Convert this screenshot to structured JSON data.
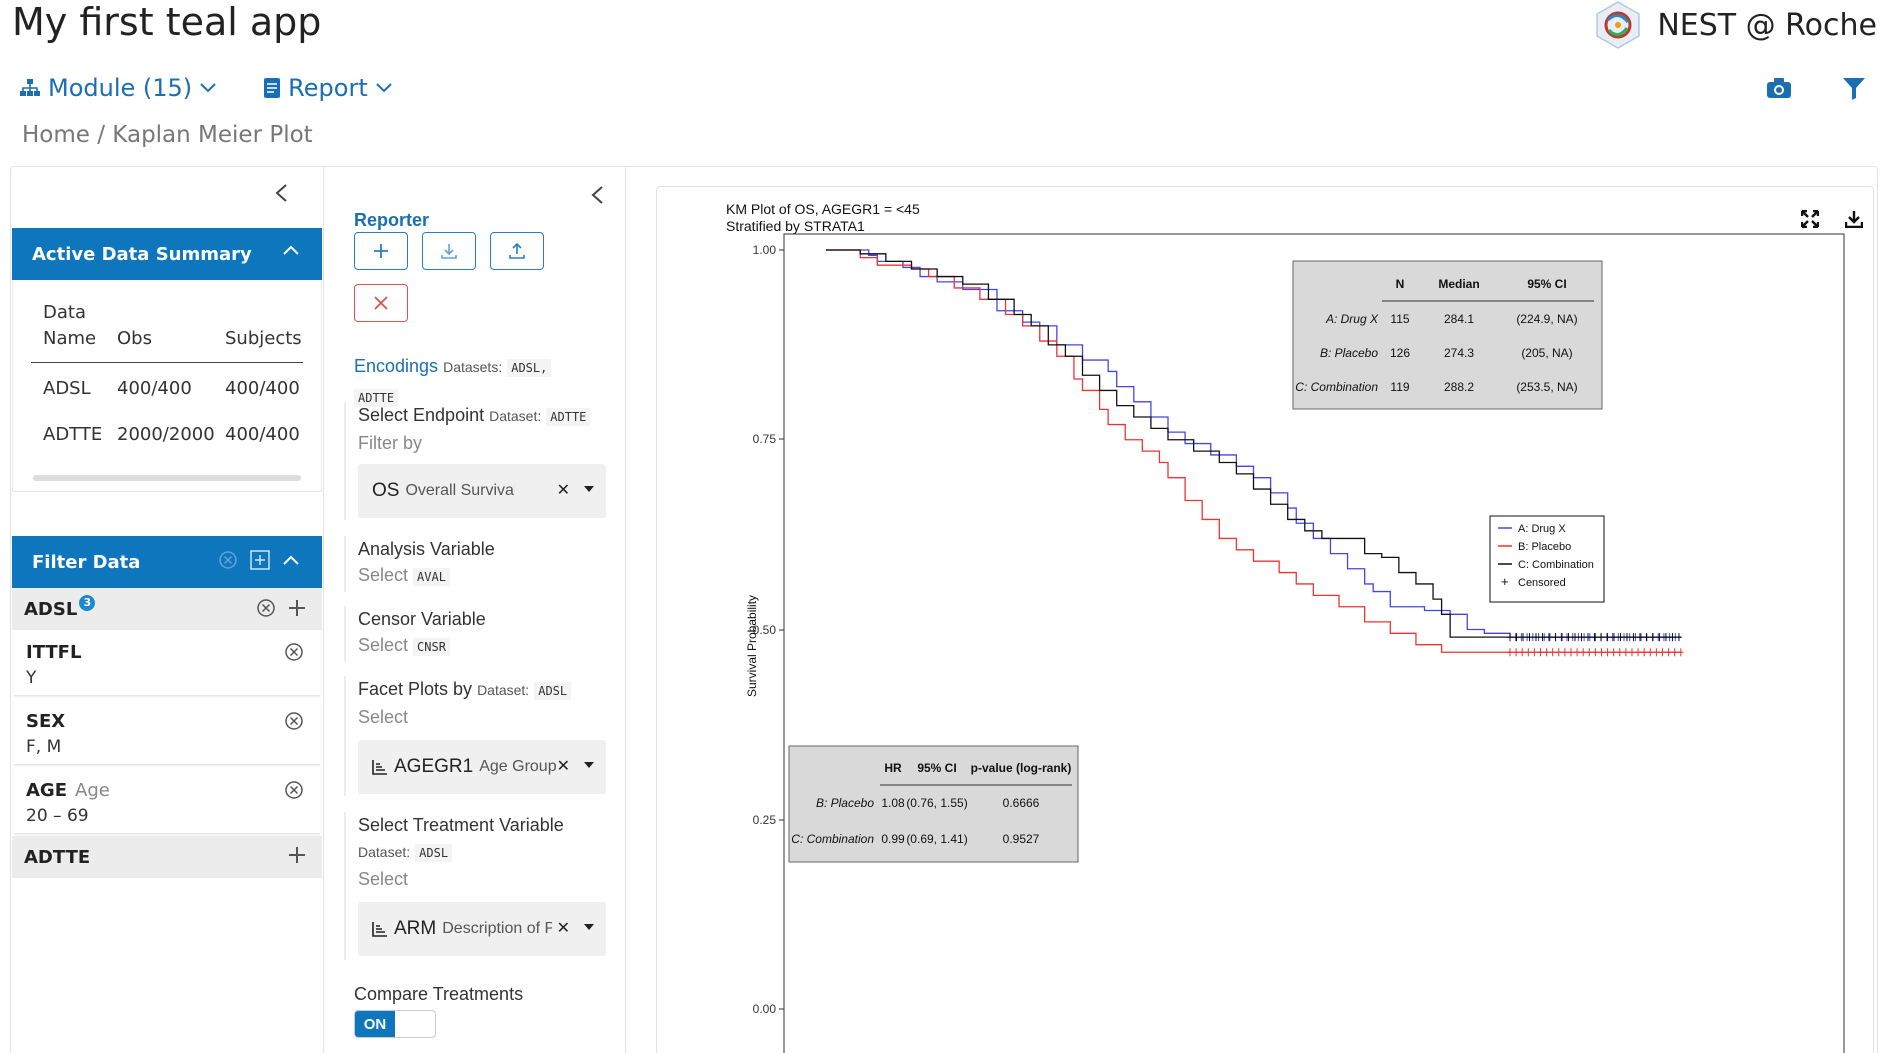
{
  "app": {
    "title": "My first teal app",
    "brand": "NEST @ Roche"
  },
  "nav": {
    "module_label": "Module (15)",
    "report_label": "Report"
  },
  "breadcrumb": "Home / Kaplan Meier Plot",
  "summary": {
    "header": "Active Data Summary",
    "col_data": "Data",
    "col_name": "Name",
    "col_obs": "Obs",
    "col_subjects": "Subjects",
    "rows": [
      {
        "name": "ADSL",
        "obs": "400/400",
        "subjects": "400/400"
      },
      {
        "name": "ADTTE",
        "obs": "2000/2000",
        "subjects": "400/400"
      }
    ]
  },
  "filter": {
    "header": "Filter Data",
    "adsl_label": "ADSL",
    "adsl_count": "3",
    "adtte_label": "ADTTE",
    "cards": [
      {
        "name": "ITTFL",
        "label": "",
        "value": "Y"
      },
      {
        "name": "SEX",
        "label": "",
        "value": "F, M"
      },
      {
        "name": "AGE",
        "label": "Age",
        "value": "20 – 69"
      }
    ]
  },
  "reporter": {
    "title": "Reporter"
  },
  "encodings": {
    "title": "Encodings",
    "datasets_label": "Datasets:",
    "datasets_1": "ADSL,",
    "datasets_2": "ADTTE",
    "endpoint_title": "Select Endpoint",
    "endpoint_ds_label": "Dataset:",
    "endpoint_ds": "ADTTE",
    "endpoint_filter": "Filter by",
    "endpoint_value": "OS",
    "endpoint_value_sub": "Overall Survival",
    "analysis_title": "Analysis Variable",
    "analysis_select": "Select",
    "analysis_value": "AVAL",
    "censor_title": "Censor Variable",
    "censor_select": "Select",
    "censor_value": "CNSR",
    "facet_title": "Facet Plots by",
    "facet_ds_label": "Dataset:",
    "facet_ds": "ADSL",
    "facet_select": "Select",
    "facet_value": "AGEGR1",
    "facet_value_sub": "Age Group",
    "treat_title": "Select Treatment Variable",
    "treat_ds_label": "Dataset:",
    "treat_ds": "ADSL",
    "treat_select": "Select",
    "treat_value": "ARM",
    "treat_value_sub": "Description of Planned Arm",
    "compare_label": "Compare Treatments",
    "toggle_on": "ON"
  },
  "chart_data": {
    "type": "line",
    "title": "KM Plot of OS, AGEGR1 = <45",
    "subtitle": "Stratified by STRATA1",
    "ylabel": "Survival Probability",
    "xlabel": "",
    "ylim": [
      0,
      1
    ],
    "yticks": [
      "1.00",
      "0.75",
      "0.50",
      "0.25",
      "0.00"
    ],
    "series": [
      {
        "name": "A: Drug X",
        "color": "#4444ee",
        "points": [
          [
            0,
            1.0
          ],
          [
            0.04,
            1.0
          ],
          [
            0.05,
            0.993
          ],
          [
            0.06,
            0.985
          ],
          [
            0.09,
            0.977
          ],
          [
            0.11,
            0.965
          ],
          [
            0.13,
            0.958
          ],
          [
            0.16,
            0.948
          ],
          [
            0.2,
            0.92
          ],
          [
            0.23,
            0.905
          ],
          [
            0.25,
            0.9
          ],
          [
            0.27,
            0.875
          ],
          [
            0.3,
            0.855
          ],
          [
            0.33,
            0.84
          ],
          [
            0.34,
            0.82
          ],
          [
            0.36,
            0.8
          ],
          [
            0.38,
            0.78
          ],
          [
            0.4,
            0.76
          ],
          [
            0.42,
            0.745
          ],
          [
            0.45,
            0.73
          ],
          [
            0.48,
            0.715
          ],
          [
            0.5,
            0.7
          ],
          [
            0.52,
            0.68
          ],
          [
            0.54,
            0.66
          ],
          [
            0.55,
            0.64
          ],
          [
            0.57,
            0.62
          ],
          [
            0.59,
            0.6
          ],
          [
            0.61,
            0.58
          ],
          [
            0.63,
            0.56
          ],
          [
            0.64,
            0.55
          ],
          [
            0.66,
            0.53
          ],
          [
            0.7,
            0.525
          ],
          [
            0.73,
            0.52
          ],
          [
            0.75,
            0.5
          ],
          [
            0.77,
            0.495
          ],
          [
            0.8,
            0.49
          ],
          [
            1.0,
            0.49
          ]
        ]
      },
      {
        "name": "B: Placebo",
        "color": "#ee3333",
        "points": [
          [
            0,
            1.0
          ],
          [
            0.04,
            0.99
          ],
          [
            0.06,
            0.98
          ],
          [
            0.1,
            0.975
          ],
          [
            0.12,
            0.965
          ],
          [
            0.15,
            0.95
          ],
          [
            0.18,
            0.935
          ],
          [
            0.21,
            0.915
          ],
          [
            0.23,
            0.9
          ],
          [
            0.25,
            0.88
          ],
          [
            0.27,
            0.86
          ],
          [
            0.29,
            0.83
          ],
          [
            0.3,
            0.815
          ],
          [
            0.32,
            0.79
          ],
          [
            0.33,
            0.77
          ],
          [
            0.35,
            0.75
          ],
          [
            0.37,
            0.735
          ],
          [
            0.39,
            0.72
          ],
          [
            0.4,
            0.7
          ],
          [
            0.42,
            0.67
          ],
          [
            0.44,
            0.645
          ],
          [
            0.46,
            0.62
          ],
          [
            0.48,
            0.605
          ],
          [
            0.5,
            0.59
          ],
          [
            0.53,
            0.575
          ],
          [
            0.55,
            0.56
          ],
          [
            0.57,
            0.545
          ],
          [
            0.6,
            0.53
          ],
          [
            0.63,
            0.51
          ],
          [
            0.66,
            0.495
          ],
          [
            0.69,
            0.48
          ],
          [
            0.72,
            0.47
          ],
          [
            1.0,
            0.47
          ]
        ]
      },
      {
        "name": "C: Combination",
        "color": "#111111",
        "points": [
          [
            0,
            1.0
          ],
          [
            0.04,
            0.995
          ],
          [
            0.07,
            0.985
          ],
          [
            0.1,
            0.975
          ],
          [
            0.13,
            0.965
          ],
          [
            0.16,
            0.955
          ],
          [
            0.19,
            0.935
          ],
          [
            0.22,
            0.915
          ],
          [
            0.24,
            0.9
          ],
          [
            0.26,
            0.875
          ],
          [
            0.28,
            0.86
          ],
          [
            0.3,
            0.835
          ],
          [
            0.32,
            0.815
          ],
          [
            0.34,
            0.795
          ],
          [
            0.36,
            0.78
          ],
          [
            0.38,
            0.765
          ],
          [
            0.4,
            0.75
          ],
          [
            0.43,
            0.735
          ],
          [
            0.46,
            0.72
          ],
          [
            0.48,
            0.705
          ],
          [
            0.5,
            0.685
          ],
          [
            0.52,
            0.665
          ],
          [
            0.54,
            0.645
          ],
          [
            0.56,
            0.63
          ],
          [
            0.58,
            0.62
          ],
          [
            0.6,
            0.62
          ],
          [
            0.63,
            0.6
          ],
          [
            0.65,
            0.595
          ],
          [
            0.67,
            0.575
          ],
          [
            0.69,
            0.56
          ],
          [
            0.71,
            0.54
          ],
          [
            0.72,
            0.52
          ],
          [
            0.73,
            0.49
          ],
          [
            1.0,
            0.49
          ]
        ]
      }
    ],
    "legend": [
      "A: Drug X",
      "B: Placebo",
      "C: Combination",
      "Censored"
    ],
    "median_table": {
      "headers": [
        "N",
        "Median",
        "95% CI"
      ],
      "rows": [
        {
          "arm": "A: Drug X",
          "n": "115",
          "median": "284.1",
          "ci": "(224.9, NA)"
        },
        {
          "arm": "B: Placebo",
          "n": "126",
          "median": "274.3",
          "ci": "(205, NA)"
        },
        {
          "arm": "C: Combination",
          "n": "119",
          "median": "288.2",
          "ci": "(253.5, NA)"
        }
      ]
    },
    "hr_table": {
      "headers": [
        "HR",
        "95% CI",
        "p-value (log-rank)"
      ],
      "rows": [
        {
          "arm": "B: Placebo",
          "hr": "1.08",
          "ci": "(0.76, 1.55)",
          "p": "0.6666"
        },
        {
          "arm": "C: Combination",
          "hr": "0.99",
          "ci": "(0.69, 1.41)",
          "p": "0.9527"
        }
      ]
    }
  }
}
